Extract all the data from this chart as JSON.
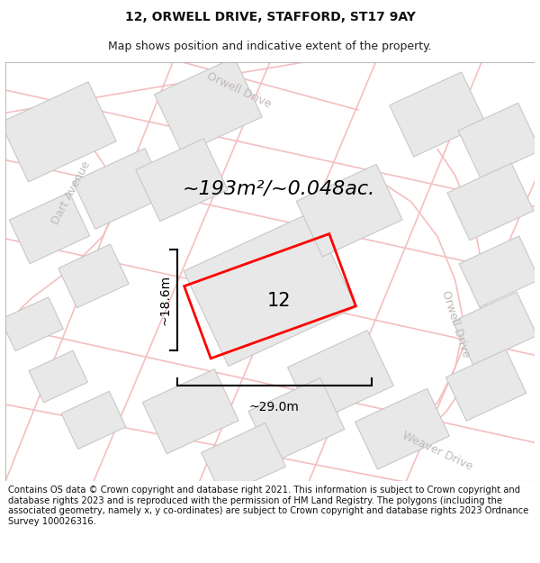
{
  "title": "12, ORWELL DRIVE, STAFFORD, ST17 9AY",
  "subtitle": "Map shows position and indicative extent of the property.",
  "footer": "Contains OS data © Crown copyright and database right 2021. This information is subject to Crown copyright and database rights 2023 and is reproduced with the permission of HM Land Registry. The polygons (including the associated geometry, namely x, y co-ordinates) are subject to Crown copyright and database rights 2023 Ordnance Survey 100026316.",
  "area_text": "~193m²/~0.048ac.",
  "dim_width": "~29.0m",
  "dim_height": "~18.6m",
  "house_number": "12",
  "bg_color": "#ffffff",
  "map_bg": "#ffffff",
  "road_color": "#f4bfbf",
  "block_color": "#e8e8e8",
  "block_stroke": "#c8c8c8",
  "red_plot_color": "#ff0000",
  "title_fontsize": 10,
  "subtitle_fontsize": 9,
  "footer_fontsize": 7.2,
  "road_label_color": "#c0b8b8",
  "dim_color": "#000000",
  "road_lw": 1.2,
  "road_curve_lw": 1.0
}
